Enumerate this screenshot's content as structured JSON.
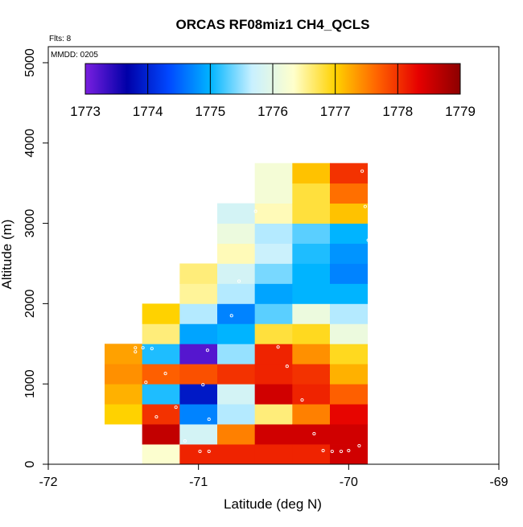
{
  "chart_data": {
    "type": "heatmap",
    "title": "ORCAS RF08miz1 CH4_QCLS",
    "annotations": [
      "Flts: 8",
      "MMDD: 0205"
    ],
    "xlabel": "Latitude (deg N)",
    "ylabel": "Altitude (m)",
    "xlim": [
      -72,
      -69
    ],
    "ylim": [
      0,
      5200
    ],
    "xticks": [
      -72,
      -71,
      -70,
      -69
    ],
    "yticks": [
      0,
      1000,
      2000,
      3000,
      4000,
      5000
    ],
    "cell_width_deg": 0.25,
    "cell_height_m": 250,
    "colorbar": {
      "min": 1773,
      "max": 1779,
      "ticks": [
        1773,
        1774,
        1775,
        1776,
        1777,
        1778,
        1779
      ],
      "stops": [
        "#7a1fe0",
        "#0000a8",
        "#0048ff",
        "#00b4ff",
        "#c8f0ff",
        "#ffffcc",
        "#ffd200",
        "#ff6400",
        "#e60000",
        "#8c0000"
      ]
    },
    "columns": [
      {
        "lat": -71.5,
        "cells": [
          {
            "alt": 500,
            "value": 1777.0
          },
          {
            "alt": 750,
            "value": 1777.2
          },
          {
            "alt": 1000,
            "value": 1777.4
          },
          {
            "alt": 1250,
            "value": 1777.3
          }
        ]
      },
      {
        "lat": -71.25,
        "cells": [
          {
            "alt": 0,
            "value": 1776.3
          },
          {
            "alt": 250,
            "value": 1778.6
          },
          {
            "alt": 500,
            "value": 1778.0
          },
          {
            "alt": 750,
            "value": 1775.1
          },
          {
            "alt": 1000,
            "value": 1777.7
          },
          {
            "alt": 1250,
            "value": 1775.1
          },
          {
            "alt": 1500,
            "value": 1776.6
          },
          {
            "alt": 1750,
            "value": 1777.0
          }
        ]
      },
      {
        "lat": -71.0,
        "cells": [
          {
            "alt": 0,
            "value": 1778.1
          },
          {
            "alt": 250,
            "value": 1775.8
          },
          {
            "alt": 500,
            "value": 1774.7
          },
          {
            "alt": 750,
            "value": 1773.9
          },
          {
            "alt": 1000,
            "value": 1777.8
          },
          {
            "alt": 1250,
            "value": 1773.2
          },
          {
            "alt": 1500,
            "value": 1774.9
          },
          {
            "alt": 1750,
            "value": 1775.6
          },
          {
            "alt": 2000,
            "value": 1776.5
          },
          {
            "alt": 2250,
            "value": 1776.6
          }
        ]
      },
      {
        "lat": -70.75,
        "cells": [
          {
            "alt": 0,
            "value": 1778.1
          },
          {
            "alt": 250,
            "value": 1777.5
          },
          {
            "alt": 500,
            "value": 1775.6
          },
          {
            "alt": 750,
            "value": 1775.8
          },
          {
            "alt": 1000,
            "value": 1778.0
          },
          {
            "alt": 1250,
            "value": 1775.5
          },
          {
            "alt": 1500,
            "value": 1775.0
          },
          {
            "alt": 1750,
            "value": 1774.7
          },
          {
            "alt": 2000,
            "value": 1775.6
          },
          {
            "alt": 2250,
            "value": 1775.8
          },
          {
            "alt": 2500,
            "value": 1776.4
          },
          {
            "alt": 2750,
            "value": 1776.1
          },
          {
            "alt": 3000,
            "value": 1775.8
          }
        ]
      },
      {
        "lat": -70.5,
        "cells": [
          {
            "alt": 0,
            "value": 1778.1
          },
          {
            "alt": 250,
            "value": 1778.5
          },
          {
            "alt": 500,
            "value": 1776.6
          },
          {
            "alt": 750,
            "value": 1778.5
          },
          {
            "alt": 1000,
            "value": 1778.1
          },
          {
            "alt": 1250,
            "value": 1778.1
          },
          {
            "alt": 1500,
            "value": 1776.8
          },
          {
            "alt": 1750,
            "value": 1775.3
          },
          {
            "alt": 2000,
            "value": 1774.9
          },
          {
            "alt": 2250,
            "value": 1775.4
          },
          {
            "alt": 2500,
            "value": 1775.7
          },
          {
            "alt": 2750,
            "value": 1775.6
          },
          {
            "alt": 3000,
            "value": 1776.4
          },
          {
            "alt": 3250,
            "value": 1776.2
          },
          {
            "alt": 3500,
            "value": 1776.2
          }
        ]
      },
      {
        "lat": -70.25,
        "cells": [
          {
            "alt": 0,
            "value": 1778.1
          },
          {
            "alt": 250,
            "value": 1778.5
          },
          {
            "alt": 500,
            "value": 1777.5
          },
          {
            "alt": 750,
            "value": 1778.1
          },
          {
            "alt": 1000,
            "value": 1778.0
          },
          {
            "alt": 1250,
            "value": 1777.4
          },
          {
            "alt": 1500,
            "value": 1776.9
          },
          {
            "alt": 1750,
            "value": 1776.1
          },
          {
            "alt": 2000,
            "value": 1775.0
          },
          {
            "alt": 2250,
            "value": 1775.0
          },
          {
            "alt": 2500,
            "value": 1775.1
          },
          {
            "alt": 2750,
            "value": 1775.3
          },
          {
            "alt": 3000,
            "value": 1776.8
          },
          {
            "alt": 3250,
            "value": 1776.8
          },
          {
            "alt": 3500,
            "value": 1777.1
          }
        ]
      },
      {
        "lat": -70.0,
        "cells": [
          {
            "alt": 0,
            "value": 1778.5
          },
          {
            "alt": 250,
            "value": 1778.5
          },
          {
            "alt": 500,
            "value": 1778.3
          },
          {
            "alt": 750,
            "value": 1777.7
          },
          {
            "alt": 1000,
            "value": 1777.2
          },
          {
            "alt": 1250,
            "value": 1776.9
          },
          {
            "alt": 1500,
            "value": 1776.1
          },
          {
            "alt": 1750,
            "value": 1775.6
          },
          {
            "alt": 2000,
            "value": 1775.0
          },
          {
            "alt": 2250,
            "value": 1774.7
          },
          {
            "alt": 2500,
            "value": 1774.8
          },
          {
            "alt": 2750,
            "value": 1775.0
          },
          {
            "alt": 3000,
            "value": 1777.1
          },
          {
            "alt": 3250,
            "value": 1777.6
          },
          {
            "alt": 3500,
            "value": 1778.0
          }
        ]
      }
    ],
    "sample_points": [
      {
        "lat": -71.42,
        "alt": 1400
      },
      {
        "lat": -71.37,
        "alt": 1450
      },
      {
        "lat": -71.42,
        "alt": 1450
      },
      {
        "lat": -71.31,
        "alt": 1440
      },
      {
        "lat": -71.35,
        "alt": 1020
      },
      {
        "lat": -71.28,
        "alt": 590
      },
      {
        "lat": -71.22,
        "alt": 1130
      },
      {
        "lat": -71.15,
        "alt": 710
      },
      {
        "lat": -71.09,
        "alt": 290
      },
      {
        "lat": -70.94,
        "alt": 1420
      },
      {
        "lat": -70.97,
        "alt": 990
      },
      {
        "lat": -70.93,
        "alt": 560
      },
      {
        "lat": -70.99,
        "alt": 160
      },
      {
        "lat": -70.93,
        "alt": 160
      },
      {
        "lat": -70.78,
        "alt": 1850
      },
      {
        "lat": -70.73,
        "alt": 2280
      },
      {
        "lat": -70.62,
        "alt": 3150
      },
      {
        "lat": -70.47,
        "alt": 1460
      },
      {
        "lat": -70.41,
        "alt": 1220
      },
      {
        "lat": -70.31,
        "alt": 800
      },
      {
        "lat": -70.23,
        "alt": 380
      },
      {
        "lat": -70.17,
        "alt": 170
      },
      {
        "lat": -70.11,
        "alt": 160
      },
      {
        "lat": -70.05,
        "alt": 160
      },
      {
        "lat": -70.0,
        "alt": 170
      },
      {
        "lat": -69.93,
        "alt": 230
      },
      {
        "lat": -69.86,
        "alt": 620
      },
      {
        "lat": -69.83,
        "alt": 2350
      },
      {
        "lat": -69.87,
        "alt": 2790
      },
      {
        "lat": -69.89,
        "alt": 3210
      },
      {
        "lat": -69.91,
        "alt": 3650
      }
    ]
  }
}
